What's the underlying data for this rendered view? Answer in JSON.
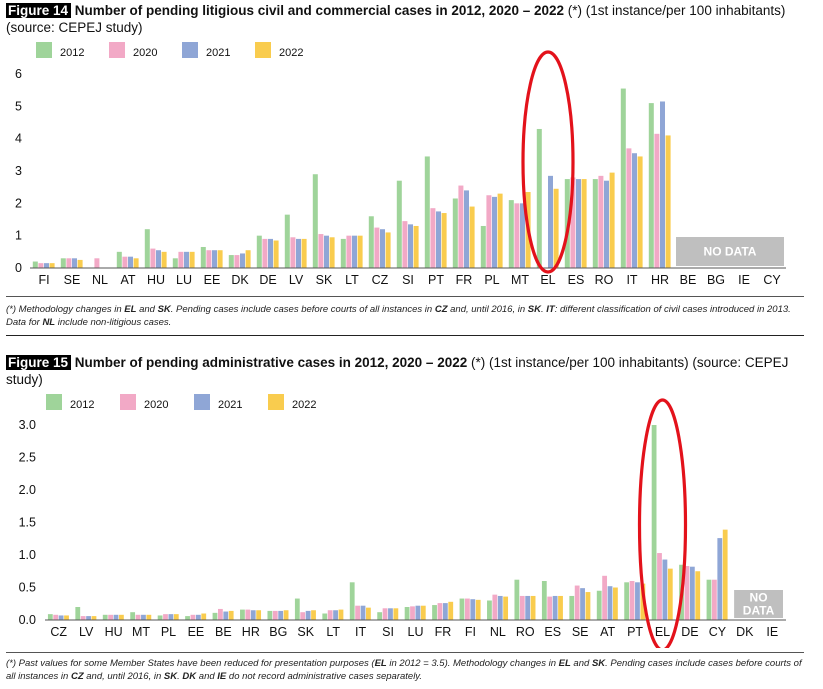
{
  "figures": [
    {
      "tag": "Figure 14",
      "title_bold": "Number of pending litigious civil and commercial cases in 2012, 2020 – 2022",
      "title_rest": " (*) (1st instance/per 100 inhabitants) (source: CEPEJ study)",
      "note_parts": [
        "(*) Methodology changes in ",
        "EL",
        " and ",
        "SK",
        ". Pending cases include cases before courts of all instances in ",
        "CZ",
        " and, until 2016, in ",
        "SK",
        ". ",
        "IT",
        ": different classification of civil cases introduced in 2013. Data for ",
        "NL",
        " include non-litigious cases."
      ],
      "no_data_label": "NO DATA"
    },
    {
      "tag": "Figure 15",
      "title_bold": "Number of pending administrative cases in 2012, 2020 – 2022",
      "title_rest": " (*) (1st instance/per 100 inhabitants) (source: CEPEJ study)",
      "note_parts": [
        "(*) Past values for some Member States have been reduced for presentation purposes (",
        "EL",
        " in 2012 = 3.5). Methodology changes in ",
        "EL",
        " and ",
        "SK",
        ". Pending cases include cases before courts of all instances in ",
        "CZ",
        " and, until 2016, in ",
        "SK",
        ". ",
        "DK",
        " and ",
        "IE",
        " do not record administrative cases separately."
      ],
      "no_data_label": "NO\nDATA"
    }
  ],
  "chart_data": [
    {
      "type": "bar",
      "ylim": [
        0,
        6
      ],
      "yticks": [
        "0",
        "1",
        "2",
        "3",
        "4",
        "5",
        "6"
      ],
      "grid": false,
      "legend_position": "top-left",
      "categories": [
        "FI",
        "SE",
        "NL",
        "AT",
        "HU",
        "LU",
        "EE",
        "DK",
        "DE",
        "LV",
        "SK",
        "LT",
        "CZ",
        "SI",
        "PT",
        "FR",
        "PL",
        "MT",
        "EL",
        "ES",
        "RO",
        "IT",
        "HR",
        "BE",
        "BG",
        "IE",
        "CY"
      ],
      "series": [
        {
          "name": "2012",
          "color": "#9fd49a",
          "values": [
            0.2,
            0.3,
            null,
            0.5,
            1.2,
            0.3,
            0.65,
            0.4,
            1.0,
            1.65,
            2.9,
            0.9,
            1.6,
            2.7,
            3.45,
            2.15,
            1.3,
            2.1,
            4.3,
            2.75,
            2.75,
            5.55,
            5.1,
            null,
            null,
            null,
            null
          ]
        },
        {
          "name": "2020",
          "color": "#f2a9c6",
          "values": [
            0.15,
            0.3,
            0.3,
            0.35,
            0.6,
            0.5,
            0.55,
            0.4,
            0.9,
            0.95,
            1.05,
            1.0,
            1.25,
            1.45,
            1.85,
            2.55,
            2.25,
            2.0,
            null,
            2.8,
            2.85,
            3.7,
            4.15,
            null,
            null,
            null,
            null
          ]
        },
        {
          "name": "2021",
          "color": "#8fa6d6",
          "values": [
            0.15,
            0.3,
            null,
            0.35,
            0.55,
            0.5,
            0.55,
            0.45,
            0.9,
            0.9,
            1.0,
            1.0,
            1.2,
            1.35,
            1.75,
            2.4,
            2.2,
            2.0,
            2.85,
            2.75,
            2.7,
            3.55,
            5.15,
            null,
            null,
            null,
            null
          ]
        },
        {
          "name": "2022",
          "color": "#f9cc4e",
          "values": [
            0.15,
            0.25,
            null,
            0.3,
            0.5,
            0.5,
            0.55,
            0.55,
            0.85,
            0.9,
            0.95,
            1.0,
            1.1,
            1.3,
            1.7,
            1.9,
            2.3,
            2.35,
            2.45,
            2.75,
            2.95,
            3.45,
            4.1,
            null,
            null,
            null,
            null
          ]
        }
      ],
      "no_data_categories": [
        "BE",
        "BG",
        "IE",
        "CY"
      ]
    },
    {
      "type": "bar",
      "ylim": [
        0,
        3
      ],
      "yticks": [
        "0.0",
        "0.5",
        "1.0",
        "1.5",
        "2.0",
        "2.5",
        "3.0"
      ],
      "grid": false,
      "legend_position": "top-left",
      "categories": [
        "CZ",
        "LV",
        "HU",
        "MT",
        "PL",
        "EE",
        "BE",
        "HR",
        "BG",
        "SK",
        "LT",
        "IT",
        "SI",
        "LU",
        "FR",
        "FI",
        "NL",
        "RO",
        "ES",
        "SE",
        "AT",
        "PT",
        "EL",
        "DE",
        "CY",
        "DK",
        "IE"
      ],
      "series": [
        {
          "name": "2012",
          "color": "#9fd49a",
          "values": [
            0.09,
            0.2,
            0.08,
            0.12,
            0.07,
            0.06,
            0.11,
            0.16,
            0.14,
            0.33,
            0.1,
            0.58,
            0.12,
            0.2,
            0.23,
            0.33,
            0.3,
            0.62,
            0.6,
            0.37,
            0.45,
            0.58,
            3.0,
            0.85,
            0.62,
            null,
            null
          ]
        },
        {
          "name": "2020",
          "color": "#f2a9c6",
          "values": [
            0.08,
            0.06,
            0.08,
            0.08,
            0.09,
            0.08,
            0.17,
            0.16,
            0.14,
            0.12,
            0.15,
            0.22,
            0.18,
            0.21,
            0.26,
            0.33,
            0.39,
            0.37,
            0.36,
            0.53,
            0.68,
            0.6,
            1.03,
            0.83,
            0.62,
            null,
            null
          ]
        },
        {
          "name": "2021",
          "color": "#8fa6d6",
          "values": [
            0.07,
            0.06,
            0.08,
            0.08,
            0.09,
            0.08,
            0.13,
            0.15,
            0.14,
            0.14,
            0.15,
            0.22,
            0.18,
            0.22,
            0.26,
            0.32,
            0.37,
            0.37,
            0.37,
            0.49,
            0.52,
            0.58,
            0.93,
            0.82,
            1.26,
            null,
            null
          ]
        },
        {
          "name": "2022",
          "color": "#f9cc4e",
          "values": [
            0.07,
            0.06,
            0.08,
            0.08,
            0.09,
            0.1,
            0.14,
            0.15,
            0.15,
            0.15,
            0.16,
            0.19,
            0.18,
            0.22,
            0.28,
            0.31,
            0.36,
            0.37,
            0.37,
            0.43,
            0.5,
            0.56,
            0.79,
            0.75,
            1.39,
            null,
            null
          ]
        }
      ],
      "no_data_categories": [
        "DK",
        "IE"
      ]
    }
  ]
}
